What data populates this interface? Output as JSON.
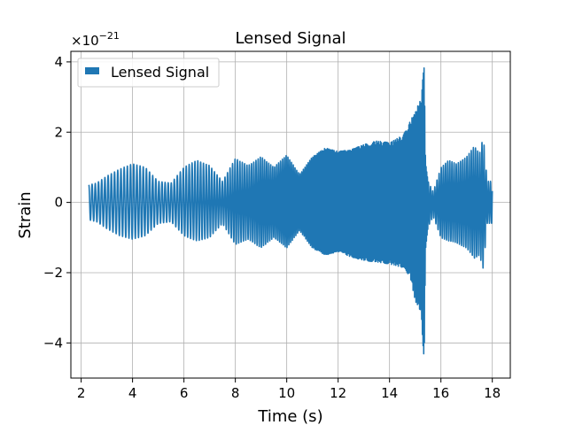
{
  "chart_data": {
    "type": "line",
    "title": "Lensed Signal",
    "xlabel": "Time (s)",
    "ylabel": "Strain",
    "y_offset_label": "×10",
    "y_offset_exponent": "−21",
    "xlim": [
      1.6,
      18.7
    ],
    "ylim": [
      -5.0,
      4.3
    ],
    "x_ticks": [
      2,
      4,
      6,
      8,
      10,
      12,
      14,
      16,
      18
    ],
    "x_tick_labels": [
      "2",
      "4",
      "6",
      "8",
      "10",
      "12",
      "14",
      "16",
      "18"
    ],
    "y_ticks": [
      -4,
      -2,
      0,
      2,
      4
    ],
    "y_tick_labels": [
      "−4",
      "−2",
      "0",
      "2",
      "4"
    ],
    "grid": true,
    "legend_position": "upper-left",
    "color": "#1f77b4",
    "series": [
      {
        "name": "Lensed Signal",
        "x_start": 2.3,
        "x_end": 18.0,
        "envelope": {
          "x": [
            2.3,
            2.6,
            3.0,
            3.5,
            4.0,
            4.5,
            5.0,
            5.5,
            6.0,
            6.5,
            7.0,
            7.5,
            8.0,
            8.5,
            9.0,
            9.5,
            10.0,
            10.5,
            11.0,
            11.5,
            12.0,
            12.5,
            13.0,
            13.5,
            14.0,
            14.5,
            14.8,
            15.0,
            15.2,
            15.35,
            15.4,
            15.5,
            15.7,
            16.0,
            16.3,
            16.6,
            17.0,
            17.3,
            17.5,
            17.65,
            17.8,
            18.0
          ],
          "upper": [
            0.5,
            0.55,
            0.75,
            0.95,
            1.1,
            1.0,
            0.6,
            0.55,
            1.0,
            1.2,
            1.05,
            0.6,
            1.25,
            1.05,
            1.3,
            1.0,
            1.35,
            0.8,
            1.3,
            1.55,
            1.45,
            1.5,
            1.65,
            1.75,
            1.7,
            1.9,
            2.3,
            2.6,
            2.9,
            3.9,
            1.2,
            0.6,
            0.3,
            1.0,
            1.2,
            1.1,
            1.3,
            1.6,
            1.4,
            1.9,
            0.6,
            0.6
          ],
          "lower": [
            -0.5,
            -0.55,
            -0.75,
            -0.95,
            -1.05,
            -0.95,
            -0.6,
            -0.55,
            -0.95,
            -1.1,
            -1.0,
            -0.6,
            -1.2,
            -1.05,
            -1.3,
            -1.0,
            -1.3,
            -0.8,
            -1.3,
            -1.5,
            -1.4,
            -1.55,
            -1.65,
            -1.7,
            -1.75,
            -1.85,
            -2.1,
            -2.8,
            -3.1,
            -4.5,
            -1.4,
            -0.7,
            -0.4,
            -1.0,
            -1.1,
            -1.15,
            -1.3,
            -1.6,
            -1.5,
            -1.9,
            -0.6,
            -0.6
          ]
        }
      }
    ]
  }
}
